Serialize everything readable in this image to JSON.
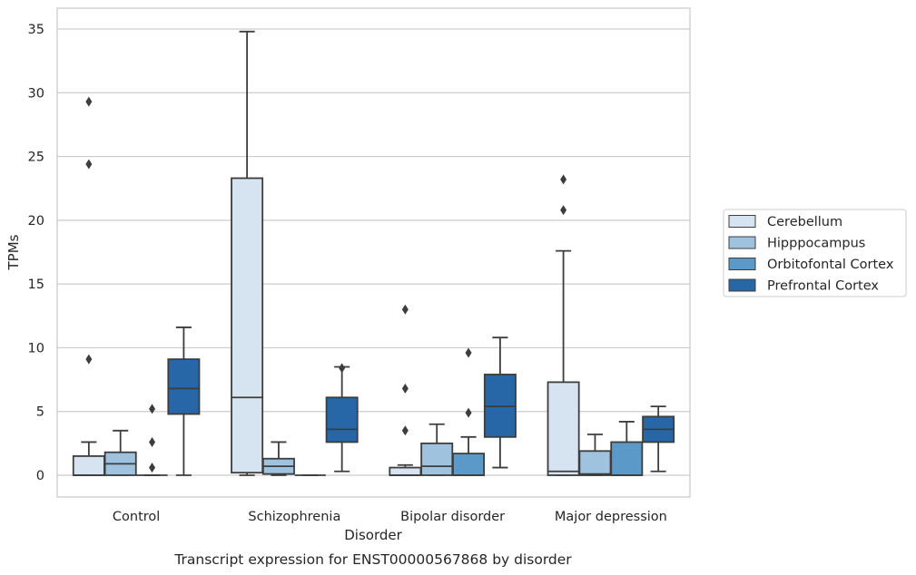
{
  "chart_data": {
    "type": "box",
    "caption": "Transcript expression for ENST00000567868 by disorder",
    "xlabel": "Disorder",
    "ylabel": "TPMs",
    "ylim": [
      -1.7,
      36.5
    ],
    "yticks": [
      0,
      5,
      10,
      15,
      20,
      25,
      30,
      35
    ],
    "grid": "horizontal",
    "legend_position": "right",
    "categories": [
      "Control",
      "Schizophrenia",
      "Bipolar disorder",
      "Major depression"
    ],
    "series": [
      {
        "name": "Cerebellum",
        "color": "#d6e4f2",
        "boxes": [
          {
            "whisker_low": 0,
            "q1": 0,
            "median": 0,
            "q3": 1.5,
            "whisker_high": 2.6,
            "outliers": [
              9.1,
              24.4,
              29.3
            ]
          },
          {
            "whisker_low": 0,
            "q1": 0.2,
            "median": 6.1,
            "q3": 23.3,
            "whisker_high": 34.8,
            "outliers": []
          },
          {
            "whisker_low": 0,
            "q1": 0,
            "median": 0,
            "q3": 0.6,
            "whisker_high": 0.8,
            "outliers": [
              3.5,
              6.8,
              13.0
            ]
          },
          {
            "whisker_low": 0,
            "q1": 0,
            "median": 0.3,
            "q3": 7.3,
            "whisker_high": 17.6,
            "outliers": [
              20.8,
              23.2
            ]
          }
        ]
      },
      {
        "name": "Hipppocampus",
        "color": "#9fc3de",
        "boxes": [
          {
            "whisker_low": 0,
            "q1": 0,
            "median": 0.9,
            "q3": 1.8,
            "whisker_high": 3.5,
            "outliers": []
          },
          {
            "whisker_low": 0,
            "q1": 0.1,
            "median": 0.7,
            "q3": 1.3,
            "whisker_high": 2.6,
            "outliers": []
          },
          {
            "whisker_low": 0,
            "q1": 0,
            "median": 0.7,
            "q3": 2.5,
            "whisker_high": 4.0,
            "outliers": []
          },
          {
            "whisker_low": 0,
            "q1": 0,
            "median": 0.1,
            "q3": 1.9,
            "whisker_high": 3.2,
            "outliers": []
          }
        ]
      },
      {
        "name": "Orbitofontal Cortex",
        "color": "#5b9ac8",
        "boxes": [
          {
            "whisker_low": 0,
            "q1": 0,
            "median": 0,
            "q3": 0,
            "whisker_high": 0,
            "outliers": [
              0.6,
              2.6,
              5.2
            ]
          },
          {
            "whisker_low": 0,
            "q1": 0,
            "median": 0,
            "q3": 0,
            "whisker_high": 0,
            "outliers": []
          },
          {
            "whisker_low": 0,
            "q1": 0,
            "median": 0,
            "q3": 1.7,
            "whisker_high": 3.0,
            "outliers": [
              4.9,
              9.6
            ]
          },
          {
            "whisker_low": 0,
            "q1": 0,
            "median": 0,
            "q3": 2.6,
            "whisker_high": 4.2,
            "outliers": []
          }
        ]
      },
      {
        "name": "Prefrontal Cortex",
        "color": "#2767a8",
        "boxes": [
          {
            "whisker_low": 0,
            "q1": 4.8,
            "median": 6.8,
            "q3": 9.1,
            "whisker_high": 11.6,
            "outliers": []
          },
          {
            "whisker_low": 0.3,
            "q1": 2.6,
            "median": 3.6,
            "q3": 6.1,
            "whisker_high": 8.5,
            "outliers": [
              8.4
            ]
          },
          {
            "whisker_low": 0.6,
            "q1": 3.0,
            "median": 5.4,
            "q3": 7.9,
            "whisker_high": 10.8,
            "outliers": []
          },
          {
            "whisker_low": 0.3,
            "q1": 2.6,
            "median": 3.6,
            "q3": 4.6,
            "whisker_high": 5.4,
            "outliers": []
          }
        ]
      }
    ]
  }
}
